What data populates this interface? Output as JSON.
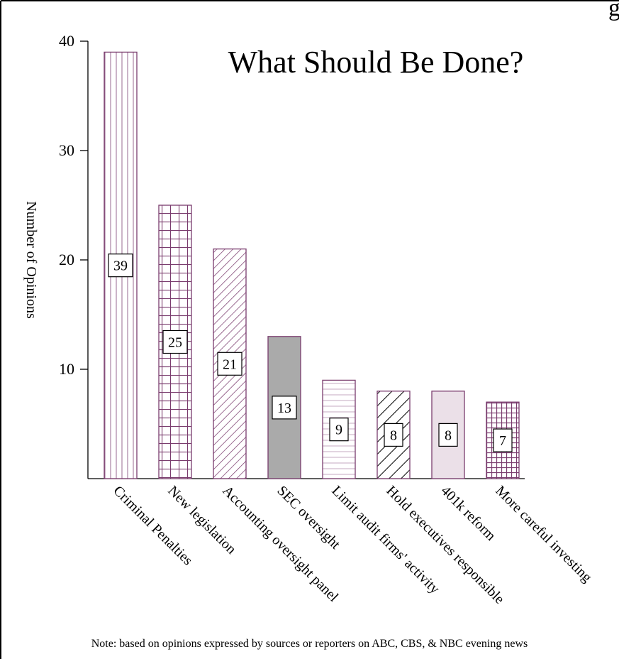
{
  "colors": {
    "frame": "#000000",
    "bar_edge": "#7a3c6e",
    "axis": "#000000",
    "text": "#000000",
    "sec_fill": "#aaaaaa",
    "reform_fill": "#ebe0e8"
  },
  "chart_data": {
    "type": "bar",
    "title": "What Should Be Done?",
    "xlabel": "",
    "ylabel": "Number of Opinions",
    "ylim": [
      0,
      40
    ],
    "yticks": [
      10,
      20,
      30,
      40
    ],
    "ytick_labels": [
      "10",
      "20",
      "30",
      "40"
    ],
    "grid": false,
    "categories": [
      "Criminal Penalties",
      "New legislation",
      "Accounting oversight panel",
      "SEC oversight",
      "Limit audit firms' activity",
      "Hold executives responsible",
      "401k reform",
      "More careful investing"
    ],
    "values": [
      39,
      25,
      21,
      13,
      9,
      8,
      8,
      7
    ],
    "data_labels": [
      "39",
      "25",
      "21",
      "13",
      "9",
      "8",
      "8",
      "7"
    ],
    "patterns": [
      "vertical-lines",
      "grid",
      "diagonal-lines",
      "solid-gray",
      "horizontal-lines",
      "diagonal-bold",
      "solid-light",
      "fine-grid"
    ]
  },
  "note": "Note: based on opinions expressed by sources or reporters on ABC, CBS, & NBC evening news",
  "corner_fragment": "g"
}
